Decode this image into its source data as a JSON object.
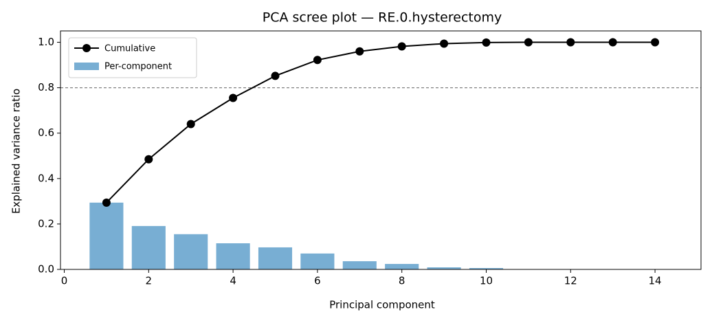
{
  "chart_data": {
    "type": "combo",
    "title": "PCA scree plot — RE.0.hysterectomy",
    "x_label": "Principal component",
    "y_label": "Explained variance ratio",
    "x": [
      1,
      2,
      3,
      4,
      5,
      6,
      7,
      8,
      9,
      10,
      11,
      12,
      13,
      14
    ],
    "series": [
      {
        "name": "Cumulative",
        "type": "line",
        "color": "#000000",
        "values": [
          0.294,
          0.485,
          0.64,
          0.755,
          0.852,
          0.922,
          0.96,
          0.982,
          0.994,
          0.999,
          1,
          1,
          1,
          1
        ]
      },
      {
        "name": "Per-component",
        "type": "bar",
        "color": "#78aed3",
        "values": [
          0.294,
          0.191,
          0.155,
          0.115,
          0.097,
          0.07,
          0.036,
          0.024,
          0.009,
          0.006,
          0.001,
          0,
          0,
          0
        ]
      }
    ],
    "threshold": 0.8,
    "xlim": [
      -0.09,
      15.09
    ],
    "xticks": [
      0,
      2,
      4,
      6,
      8,
      10,
      12,
      14
    ],
    "ylim": [
      0,
      1.05
    ],
    "yticks": [
      {
        "value": 0,
        "label": "0.0"
      },
      0.2,
      0.4,
      0.6,
      0.8,
      {
        "value": 1,
        "label": "1.0"
      }
    ],
    "legend": "upper left"
  }
}
